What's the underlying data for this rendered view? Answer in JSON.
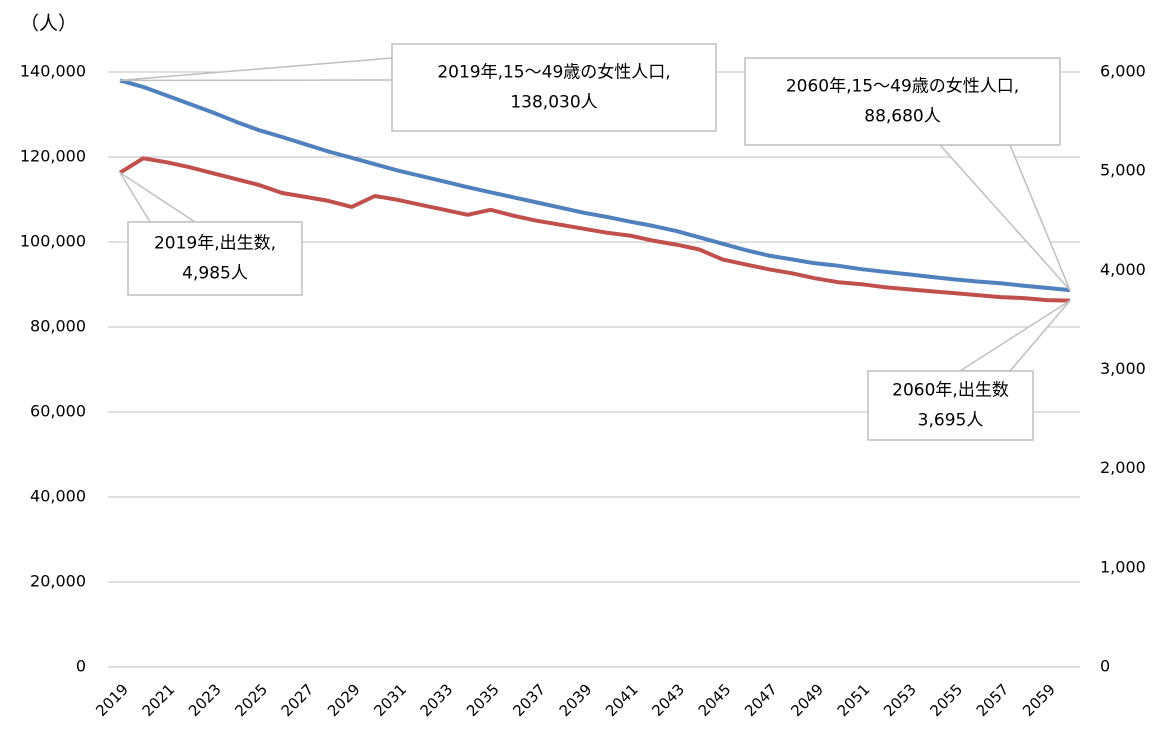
{
  "chart_data": {
    "type": "line",
    "y_axis_label": "（人）",
    "x": [
      2019,
      2020,
      2021,
      2022,
      2023,
      2024,
      2025,
      2026,
      2027,
      2028,
      2029,
      2030,
      2031,
      2032,
      2033,
      2034,
      2035,
      2036,
      2037,
      2038,
      2039,
      2040,
      2041,
      2042,
      2043,
      2044,
      2045,
      2046,
      2047,
      2048,
      2049,
      2050,
      2051,
      2052,
      2053,
      2054,
      2055,
      2056,
      2057,
      2058,
      2059,
      2060
    ],
    "xlim": [
      2019,
      2060
    ],
    "xticks": [
      2019,
      2021,
      2023,
      2025,
      2027,
      2029,
      2031,
      2033,
      2035,
      2037,
      2039,
      2041,
      2043,
      2045,
      2047,
      2049,
      2051,
      2053,
      2055,
      2057,
      2059
    ],
    "ylim": [
      0,
      140000
    ],
    "yticks": [
      0,
      {
        "value": 20000,
        "label": "20,000"
      },
      {
        "value": 40000,
        "label": "40,000"
      },
      {
        "value": 60000,
        "label": "60,000"
      },
      {
        "value": 80000,
        "label": "80,000"
      },
      {
        "value": 100000,
        "label": "100,000"
      },
      {
        "value": 120000,
        "label": "120,000"
      },
      {
        "value": 140000,
        "label": "140,000"
      }
    ],
    "y2lim": [
      0,
      6000
    ],
    "y2ticks": [
      0,
      {
        "value": 1000,
        "label": "1,000"
      },
      {
        "value": 2000,
        "label": "2,000"
      },
      {
        "value": 3000,
        "label": "3,000"
      },
      {
        "value": 4000,
        "label": "4,000"
      },
      {
        "value": 5000,
        "label": "5,000"
      },
      {
        "value": 6000,
        "label": "6,000"
      }
    ],
    "grid": true,
    "series": [
      {
        "color": "#4f81bd",
        "values": [
          138030,
          136500,
          134500,
          132500,
          130500,
          128300,
          126300,
          124700,
          123000,
          121300,
          119800,
          118300,
          116800,
          115500,
          114200,
          112900,
          111700,
          110500,
          109300,
          108100,
          106900,
          105900,
          104800,
          103800,
          102600,
          101100,
          99600,
          98100,
          96800,
          95900,
          95000,
          94400,
          93600,
          93000,
          92400,
          91800,
          91200,
          90700,
          90300,
          89700,
          89200,
          88680
        ]
      },
      {
        "color": "#c0504d",
        "axis": "y2",
        "values": [
          4985,
          5130,
          5090,
          5040,
          4980,
          4920,
          4860,
          4780,
          4740,
          4700,
          4640,
          4750,
          4710,
          4660,
          4610,
          4560,
          4610,
          4550,
          4500,
          4460,
          4420,
          4380,
          4350,
          4300,
          4260,
          4210,
          4110,
          4060,
          4010,
          3970,
          3920,
          3880,
          3860,
          3830,
          3810,
          3790,
          3770,
          3750,
          3730,
          3720,
          3700,
          3695
        ]
      }
    ],
    "annotations": [
      {
        "lines": [
          "2019年,15～49歳の女性人口,",
          "138,030人"
        ]
      },
      {
        "lines": [
          "2060年,15～49歳の女性人口,",
          "88,680人"
        ]
      },
      {
        "lines": [
          "2019年,出生数,",
          "4,985人"
        ]
      },
      {
        "lines": [
          "2060年,出生数",
          "3,695人"
        ]
      }
    ]
  }
}
